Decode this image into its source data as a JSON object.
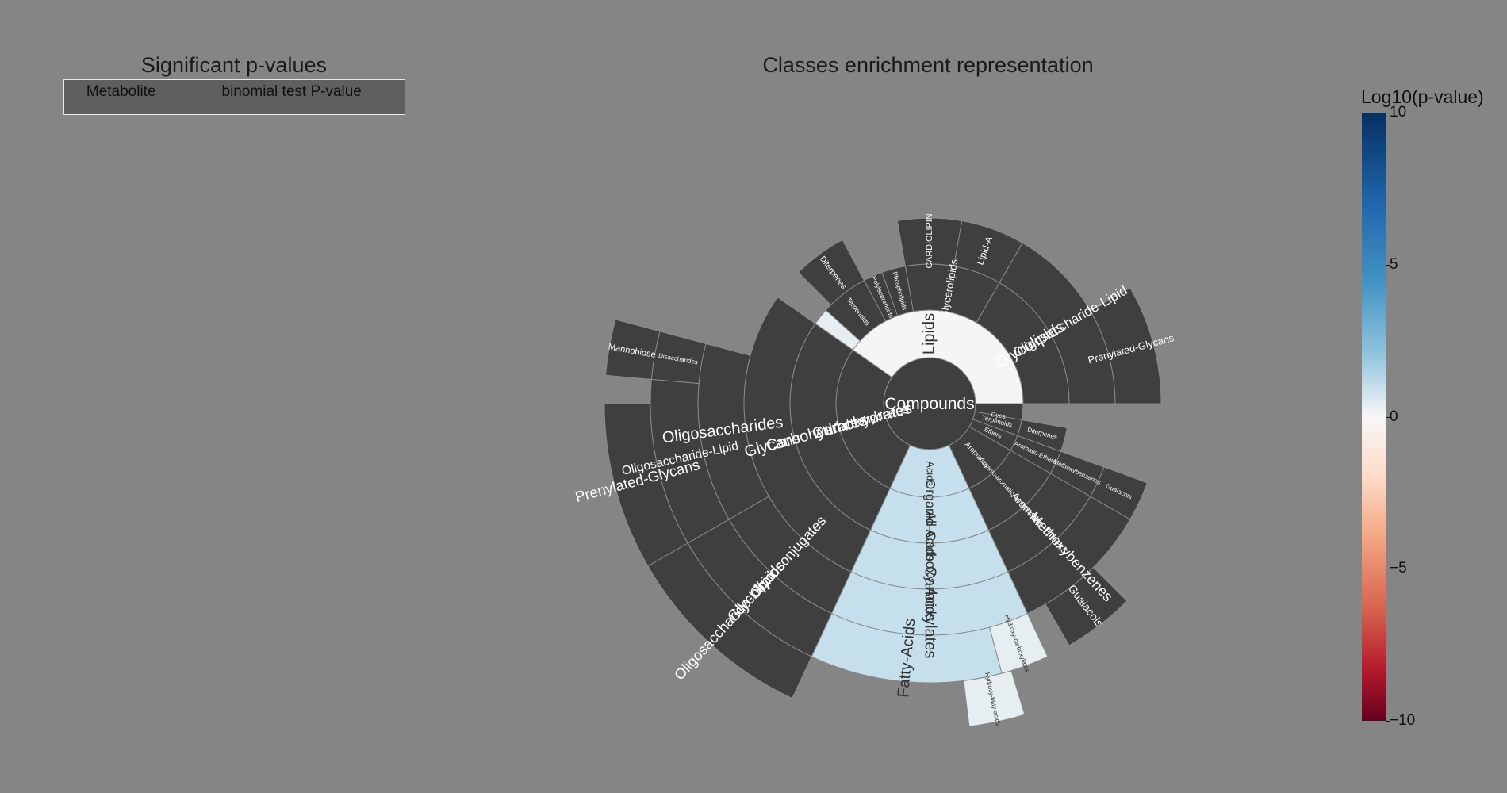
{
  "table": {
    "title": "Significant p-values",
    "headers": [
      "Metabolite",
      "binomial test P-value"
    ]
  },
  "chart_data": {
    "type": "sunburst",
    "title": "Classes enrichment representation",
    "colorbar": {
      "title": "Log10(p-value)",
      "ticks": [
        "10",
        "5",
        "0",
        "−5",
        "−10"
      ],
      "range": [
        -10,
        10
      ]
    },
    "root": "Compounds",
    "nodes": [
      {
        "label": "Lipids",
        "level": 1,
        "start": 0,
        "end": 180,
        "value": 0
      },
      {
        "label": "Glycolipids",
        "level": 2,
        "start": 0,
        "end": 60,
        "value": -0.5
      },
      {
        "label": "Oligosaccharide-Lipid",
        "level": 3,
        "start": 0,
        "end": 60,
        "value": -0.5
      },
      {
        "label": "Prenylated-Glycans",
        "level": 4,
        "start": 0,
        "end": 30,
        "value": -0.5
      },
      {
        "label": "Lipid-A",
        "level": 3,
        "start": 60,
        "end": 80,
        "value": -0.5
      },
      {
        "label": "Glycerolipids",
        "level": 2,
        "start": 60,
        "end": 100,
        "value": -0.5
      },
      {
        "label": "CARDIOLIPIN",
        "level": 3,
        "start": 80,
        "end": 100,
        "value": -0.5
      },
      {
        "label": "Phospholipids",
        "level": 2,
        "start": 100,
        "end": 110,
        "value": -0.5
      },
      {
        "label": "Polyisoprenoids",
        "level": 2,
        "start": 110,
        "end": 118,
        "value": -0.5
      },
      {
        "label": "Terpenoids",
        "level": 2,
        "start": 118,
        "end": 138,
        "value": -0.5
      },
      {
        "label": "Diterpenes",
        "level": 3,
        "start": 118,
        "end": 135,
        "value": -0.5
      },
      {
        "label": "",
        "level": 2,
        "start": 138,
        "end": 145,
        "value": 1
      },
      {
        "label": "Carbohydrates",
        "level": 1,
        "start": 145,
        "end": 245,
        "value": -0.5
      },
      {
        "label": "All-Carbohydrates",
        "level": 1,
        "start": 145,
        "end": 245,
        "value": -0.5
      },
      {
        "label": "Carbohydrates",
        "level": 2,
        "start": 145,
        "end": 245,
        "value": -0.5
      },
      {
        "label": "Glycans",
        "level": 3,
        "start": 145,
        "end": 245,
        "value": -0.5
      },
      {
        "label": "Oligosaccharides",
        "level": 4,
        "start": 165,
        "end": 210,
        "value": -0.5
      },
      {
        "label": "Oligosaccharide-Lipid",
        "level": 5,
        "start": 175,
        "end": 210,
        "value": -0.5
      },
      {
        "label": "Prenylated-Glycans",
        "level": 6,
        "start": 180,
        "end": 210,
        "value": -0.5
      },
      {
        "label": "Disaccharides",
        "level": 5,
        "start": 165,
        "end": 175,
        "value": -0.5
      },
      {
        "label": "Mannobiose",
        "level": 6,
        "start": 165,
        "end": 175,
        "value": -0.5
      },
      {
        "label": "Glycoconjugates",
        "level": 4,
        "start": 210,
        "end": 245,
        "value": -0.5
      },
      {
        "label": "Glycolipids",
        "level": 5,
        "start": 210,
        "end": 245,
        "value": -0.5
      },
      {
        "label": "Oligosaccharide-Lipid",
        "level": 6,
        "start": 210,
        "end": 245,
        "value": -0.5
      },
      {
        "label": "Acids",
        "level": 1,
        "start": 245,
        "end": 295,
        "value": 2
      },
      {
        "label": "Organic-Acids",
        "level": 2,
        "start": 245,
        "end": 295,
        "value": 2
      },
      {
        "label": "All-Carboxy-Acids",
        "level": 3,
        "start": 245,
        "end": 295,
        "value": 2
      },
      {
        "label": "Carboxylates",
        "level": 4,
        "start": 245,
        "end": 295,
        "value": 2
      },
      {
        "label": "Fatty-Acids",
        "level": 5,
        "start": 245,
        "end": 285,
        "value": 2
      },
      {
        "label": "Hydroxy-fatty-acids",
        "level": 6,
        "start": 277,
        "end": 287,
        "value": 1
      },
      {
        "label": "Hydroxy-carboxylates",
        "level": 5,
        "start": 285,
        "end": 295,
        "value": 1
      },
      {
        "label": "Aromatics",
        "level": 1,
        "start": 295,
        "end": 330,
        "value": -0.5
      },
      {
        "label": "Organic-aromatic-compounds",
        "level": 2,
        "start": 295,
        "end": 330,
        "value": -0.5
      },
      {
        "label": "Aromatic-Ethers",
        "level": 3,
        "start": 295,
        "end": 330,
        "value": -0.5
      },
      {
        "label": "Methoxybenzenes",
        "level": 4,
        "start": 295,
        "end": 330,
        "value": -0.5
      },
      {
        "label": "Guaiacols",
        "level": 5,
        "start": 300,
        "end": 315,
        "value": -0.5
      },
      {
        "label": "Dyes",
        "level": 1,
        "start": 340,
        "end": 360,
        "value": -0.5
      },
      {
        "label": "Ethers",
        "level": 1,
        "start": 330,
        "end": 340,
        "value": -0.5
      },
      {
        "label": "Aromatic-Ethers",
        "level": 2,
        "start": 330,
        "end": 340,
        "value": -0.5
      },
      {
        "label": "Methoxybenzenes",
        "level": 3,
        "start": 330,
        "end": 340,
        "value": -0.5
      },
      {
        "label": "Guaiacols",
        "level": 4,
        "start": 330,
        "end": 340,
        "value": -0.5
      },
      {
        "label": "Terpenoids",
        "level": 1,
        "start": 340,
        "end": 350,
        "value": -0.5
      },
      {
        "label": "Diterpenes",
        "level": 2,
        "start": 340,
        "end": 350,
        "value": -0.5
      }
    ]
  }
}
